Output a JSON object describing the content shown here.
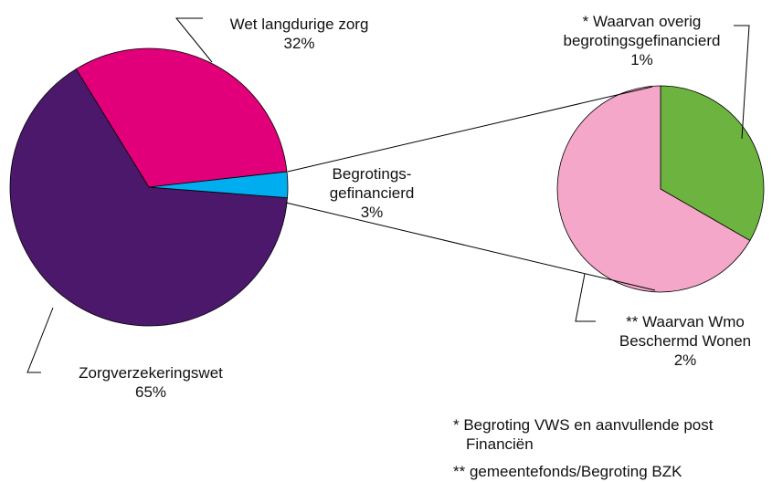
{
  "chart_data": [
    {
      "type": "pie",
      "categories": [
        "Zorgverzekeringswet",
        "Wet langdurige zorg",
        "Begrotings-gefinancierd"
      ],
      "values": [
        65,
        32,
        3
      ],
      "value_labels": [
        "65%",
        "32%",
        "3%"
      ],
      "colors": [
        "#4b186b",
        "#e2007a",
        "#00aeef"
      ]
    },
    {
      "type": "pie",
      "categories": [
        "* Waarvan overig begrotingsgefinancierd",
        "** Waarvan Wmo Beschermd Wonen"
      ],
      "values": [
        1,
        2
      ],
      "value_labels": [
        "1%",
        "2%"
      ],
      "colors": [
        "#6db33f",
        "#f4a7c9"
      ]
    }
  ],
  "footnotes": [
    "* Begroting VWS en aanvullende post Financiën",
    "** gemeentefonds/Begroting BZK"
  ]
}
